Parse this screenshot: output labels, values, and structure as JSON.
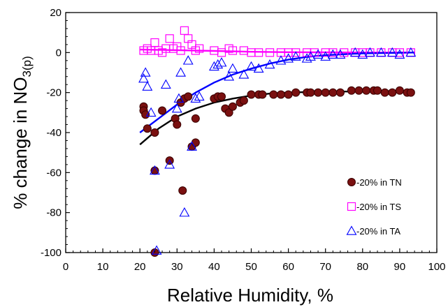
{
  "chart_data": {
    "type": "scatter",
    "xlabel": "Relative Humidity, %",
    "ylabel_main": "% change in NO",
    "ylabel_sub": "3(p)",
    "xlim": [
      0,
      100
    ],
    "ylim": [
      -100,
      20
    ],
    "xticks": [
      0,
      10,
      20,
      30,
      40,
      50,
      60,
      70,
      80,
      90,
      100
    ],
    "yticks": [
      20,
      0,
      -20,
      -40,
      -60,
      -80,
      -100
    ],
    "grid": false,
    "legend_position": "bottom-right",
    "series": [
      {
        "name": "-20% in TN",
        "marker": "circle",
        "color": "#7a1010",
        "stroke": "#3a0000",
        "points": [
          [
            21,
            -27
          ],
          [
            21,
            -29
          ],
          [
            21.5,
            -31
          ],
          [
            22,
            -38
          ],
          [
            24,
            -40
          ],
          [
            24,
            -59
          ],
          [
            24,
            -100
          ],
          [
            26,
            -29
          ],
          [
            28,
            -54
          ],
          [
            29.5,
            -33
          ],
          [
            30,
            -36
          ],
          [
            31,
            -25
          ],
          [
            31.5,
            -69
          ],
          [
            32,
            -23
          ],
          [
            33,
            -22
          ],
          [
            34,
            -47
          ],
          [
            35,
            -45
          ],
          [
            35,
            -33
          ],
          [
            40,
            -23
          ],
          [
            41,
            -22
          ],
          [
            42,
            -22
          ],
          [
            43,
            -28
          ],
          [
            44,
            -30
          ],
          [
            45,
            -27
          ],
          [
            47,
            -25
          ],
          [
            48,
            -24
          ],
          [
            50,
            -21
          ],
          [
            52,
            -21
          ],
          [
            53,
            -21
          ],
          [
            56,
            -21
          ],
          [
            58,
            -21
          ],
          [
            60,
            -21
          ],
          [
            62,
            -20
          ],
          [
            65,
            -20
          ],
          [
            66,
            -20
          ],
          [
            68,
            -20
          ],
          [
            70,
            -20
          ],
          [
            72,
            -20
          ],
          [
            74,
            -20
          ],
          [
            77,
            -19
          ],
          [
            79,
            -19
          ],
          [
            81,
            -19
          ],
          [
            83,
            -19
          ],
          [
            84,
            -19
          ],
          [
            86,
            -20
          ],
          [
            88,
            -20
          ],
          [
            90,
            -19
          ],
          [
            92,
            -20
          ],
          [
            93,
            -20
          ]
        ],
        "trend": [
          [
            20,
            -46
          ],
          [
            25,
            -38
          ],
          [
            30,
            -32
          ],
          [
            35,
            -28
          ],
          [
            40,
            -25
          ],
          [
            45,
            -23
          ],
          [
            50,
            -21.5
          ],
          [
            55,
            -20.5
          ],
          [
            60,
            -20
          ],
          [
            70,
            -19.5
          ],
          [
            80,
            -19.5
          ],
          [
            90,
            -19.8
          ],
          [
            94,
            -20
          ]
        ]
      },
      {
        "name": "-20% in TS",
        "marker": "square",
        "color": "#ff00ff",
        "points": [
          [
            21,
            1
          ],
          [
            22,
            2
          ],
          [
            23,
            1
          ],
          [
            24,
            5
          ],
          [
            25,
            1
          ],
          [
            26,
            0
          ],
          [
            27,
            2
          ],
          [
            28,
            7
          ],
          [
            29,
            2
          ],
          [
            30,
            3
          ],
          [
            31,
            1
          ],
          [
            32,
            11
          ],
          [
            33,
            7
          ],
          [
            34,
            4
          ],
          [
            35,
            1
          ],
          [
            36,
            2
          ],
          [
            40,
            1
          ],
          [
            42,
            0
          ],
          [
            44,
            2
          ],
          [
            45,
            1
          ],
          [
            48,
            1
          ],
          [
            50,
            0
          ],
          [
            52,
            0
          ],
          [
            55,
            0
          ],
          [
            58,
            0
          ],
          [
            60,
            0
          ],
          [
            62,
            0
          ],
          [
            65,
            0
          ],
          [
            67,
            0
          ],
          [
            70,
            0
          ],
          [
            72,
            0
          ],
          [
            75,
            0
          ],
          [
            78,
            0
          ],
          [
            80,
            0
          ],
          [
            82,
            0
          ],
          [
            85,
            0
          ],
          [
            88,
            0
          ],
          [
            90,
            0
          ],
          [
            93,
            0
          ]
        ],
        "trend": [
          [
            20,
            1.5
          ],
          [
            30,
            1.2
          ],
          [
            40,
            0.8
          ],
          [
            50,
            0.4
          ],
          [
            60,
            0.2
          ],
          [
            70,
            0.1
          ],
          [
            80,
            0
          ],
          [
            94,
            0
          ]
        ]
      },
      {
        "name": "-20% in TA",
        "marker": "triangle",
        "color": "#0000ff",
        "points": [
          [
            21,
            -13
          ],
          [
            21.5,
            -10
          ],
          [
            22,
            -17
          ],
          [
            23,
            -30
          ],
          [
            24,
            -59
          ],
          [
            24.5,
            -99
          ],
          [
            27,
            -16
          ],
          [
            28,
            -56
          ],
          [
            30,
            -28
          ],
          [
            30.5,
            -23
          ],
          [
            31,
            -10
          ],
          [
            32,
            -80
          ],
          [
            33,
            -4
          ],
          [
            34,
            -47
          ],
          [
            35,
            -23
          ],
          [
            36,
            -22
          ],
          [
            40,
            -7
          ],
          [
            41,
            -6
          ],
          [
            42,
            -5
          ],
          [
            44,
            -12
          ],
          [
            45,
            -8
          ],
          [
            48,
            -11
          ],
          [
            50,
            -7
          ],
          [
            52,
            -8
          ],
          [
            55,
            -6
          ],
          [
            58,
            -4
          ],
          [
            60,
            -3
          ],
          [
            62,
            -2
          ],
          [
            65,
            -3
          ],
          [
            66,
            -2
          ],
          [
            68,
            -1
          ],
          [
            70,
            -2
          ],
          [
            72,
            -1
          ],
          [
            74,
            -1
          ],
          [
            78,
            0
          ],
          [
            80,
            -1
          ],
          [
            82,
            0
          ],
          [
            85,
            0
          ],
          [
            88,
            0
          ],
          [
            90,
            -1
          ],
          [
            93,
            0
          ]
        ],
        "trend": [
          [
            20,
            -40
          ],
          [
            25,
            -33
          ],
          [
            30,
            -26
          ],
          [
            35,
            -20
          ],
          [
            40,
            -15
          ],
          [
            45,
            -11
          ],
          [
            50,
            -8
          ],
          [
            55,
            -5.5
          ],
          [
            60,
            -3.5
          ],
          [
            65,
            -2.2
          ],
          [
            70,
            -1.3
          ],
          [
            80,
            -0.4
          ],
          [
            94,
            0
          ]
        ]
      }
    ]
  }
}
